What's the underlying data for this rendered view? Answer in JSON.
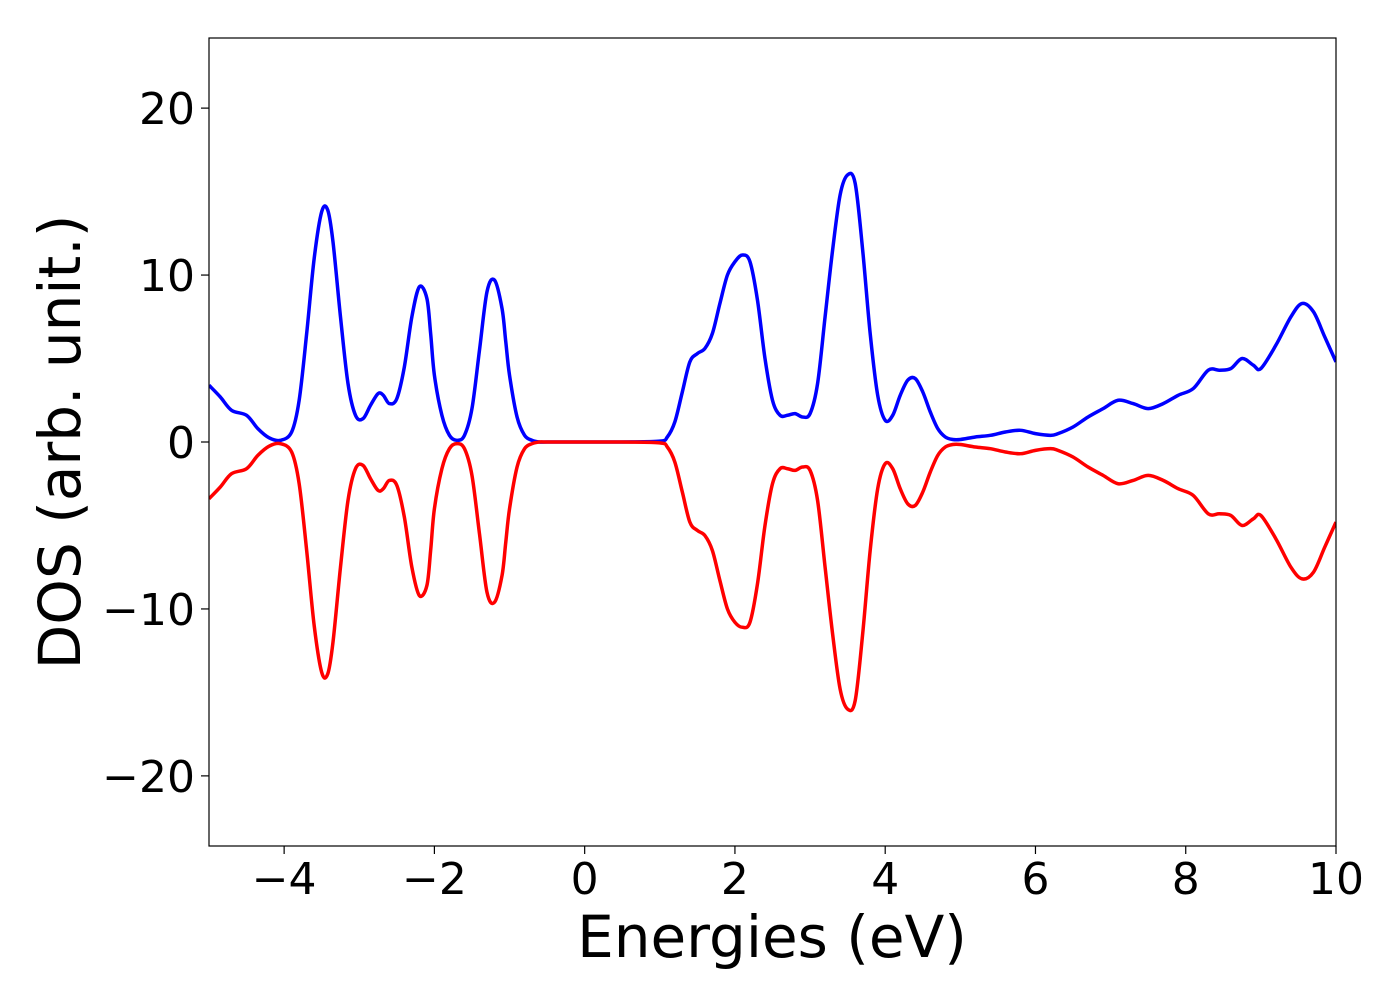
{
  "chart_data": {
    "type": "line",
    "title": "",
    "xlabel": "Energies (eV)",
    "ylabel": "DOS (arb. unit.)",
    "xlim": [
      -5,
      10
    ],
    "ylim": [
      -24.2,
      24.2
    ],
    "grid": false,
    "legend": "none",
    "x_ticks": [
      -4,
      -2,
      0,
      2,
      4,
      6,
      8,
      10
    ],
    "x_tick_labels": [
      "−4",
      "−2",
      "0",
      "2",
      "4",
      "6",
      "8",
      "10"
    ],
    "y_ticks": [
      20,
      10,
      0,
      -10,
      -20
    ],
    "y_tick_labels": [
      "20",
      "10",
      "0",
      "−10",
      "−20"
    ],
    "series": [
      {
        "color": "#0000ff",
        "x": [
          -5.0,
          -4.85,
          -4.7,
          -4.5,
          -4.35,
          -4.2,
          -4.05,
          -3.9,
          -3.8,
          -3.7,
          -3.6,
          -3.5,
          -3.42,
          -3.35,
          -3.25,
          -3.15,
          -3.05,
          -2.95,
          -2.85,
          -2.75,
          -2.68,
          -2.6,
          -2.5,
          -2.4,
          -2.3,
          -2.2,
          -2.1,
          -2.05,
          -2.0,
          -1.9,
          -1.8,
          -1.7,
          -1.6,
          -1.5,
          -1.4,
          -1.3,
          -1.2,
          -1.1,
          -1.05,
          -1.0,
          -0.9,
          -0.8,
          -0.7,
          -0.6,
          -0.5,
          0.0,
          0.5,
          1.0,
          1.1,
          1.2,
          1.3,
          1.4,
          1.5,
          1.6,
          1.7,
          1.8,
          1.9,
          2.0,
          2.1,
          2.2,
          2.3,
          2.4,
          2.5,
          2.6,
          2.7,
          2.8,
          2.9,
          3.0,
          3.1,
          3.2,
          3.3,
          3.4,
          3.5,
          3.6,
          3.7,
          3.8,
          3.9,
          4.0,
          4.1,
          4.2,
          4.3,
          4.4,
          4.5,
          4.6,
          4.7,
          4.8,
          4.9,
          5.0,
          5.2,
          5.4,
          5.6,
          5.8,
          6.0,
          6.2,
          6.3,
          6.5,
          6.7,
          6.9,
          7.1,
          7.3,
          7.5,
          7.7,
          7.9,
          8.1,
          8.3,
          8.45,
          8.6,
          8.75,
          8.9,
          9.0,
          9.2,
          9.4,
          9.55,
          9.7,
          9.85,
          10.0
        ],
        "y": [
          3.4,
          2.7,
          1.9,
          1.6,
          0.8,
          0.25,
          0.1,
          0.6,
          2.5,
          6.5,
          11.0,
          13.8,
          13.9,
          12.0,
          7.5,
          3.5,
          1.6,
          1.4,
          2.2,
          2.9,
          2.8,
          2.3,
          2.6,
          4.5,
          7.5,
          9.3,
          8.6,
          6.5,
          4.0,
          1.6,
          0.4,
          0.1,
          0.4,
          2.0,
          5.5,
          9.0,
          9.7,
          8.0,
          6.0,
          4.0,
          1.5,
          0.4,
          0.1,
          0.0,
          0.0,
          0.0,
          0.0,
          0.05,
          0.3,
          1.2,
          3.0,
          4.8,
          5.3,
          5.6,
          6.5,
          8.3,
          10.0,
          10.8,
          11.2,
          10.8,
          8.5,
          5.0,
          2.5,
          1.6,
          1.6,
          1.7,
          1.5,
          1.7,
          3.5,
          7.5,
          11.5,
          14.8,
          16.0,
          15.5,
          11.5,
          6.5,
          2.8,
          1.3,
          1.6,
          2.8,
          3.7,
          3.8,
          3.0,
          1.8,
          0.8,
          0.3,
          0.15,
          0.15,
          0.3,
          0.4,
          0.6,
          0.7,
          0.5,
          0.4,
          0.5,
          0.9,
          1.5,
          2.0,
          2.5,
          2.3,
          2.0,
          2.3,
          2.8,
          3.2,
          4.3,
          4.3,
          4.4,
          5.0,
          4.6,
          4.4,
          5.8,
          7.5,
          8.3,
          7.8,
          6.3,
          4.8
        ]
      },
      {
        "color": "#ff0000",
        "x": [
          -5.0,
          -4.85,
          -4.7,
          -4.5,
          -4.35,
          -4.2,
          -4.05,
          -3.9,
          -3.8,
          -3.7,
          -3.6,
          -3.5,
          -3.42,
          -3.35,
          -3.25,
          -3.15,
          -3.05,
          -2.95,
          -2.85,
          -2.75,
          -2.68,
          -2.6,
          -2.5,
          -2.4,
          -2.3,
          -2.2,
          -2.1,
          -2.05,
          -2.0,
          -1.9,
          -1.8,
          -1.7,
          -1.6,
          -1.5,
          -1.4,
          -1.3,
          -1.2,
          -1.1,
          -1.05,
          -1.0,
          -0.9,
          -0.8,
          -0.7,
          -0.6,
          -0.5,
          0.0,
          0.5,
          1.0,
          1.1,
          1.2,
          1.3,
          1.4,
          1.5,
          1.6,
          1.7,
          1.8,
          1.9,
          2.0,
          2.1,
          2.2,
          2.3,
          2.4,
          2.5,
          2.6,
          2.7,
          2.8,
          2.9,
          3.0,
          3.1,
          3.2,
          3.3,
          3.4,
          3.5,
          3.6,
          3.7,
          3.8,
          3.9,
          4.0,
          4.1,
          4.2,
          4.3,
          4.4,
          4.5,
          4.6,
          4.7,
          4.8,
          4.9,
          5.0,
          5.2,
          5.4,
          5.6,
          5.8,
          6.0,
          6.2,
          6.3,
          6.5,
          6.7,
          6.9,
          7.1,
          7.3,
          7.5,
          7.7,
          7.9,
          8.1,
          8.3,
          8.45,
          8.6,
          8.75,
          8.9,
          9.0,
          9.2,
          9.4,
          9.55,
          9.7,
          9.85,
          10.0
        ],
        "y": [
          -3.4,
          -2.7,
          -1.9,
          -1.6,
          -0.8,
          -0.25,
          -0.1,
          -0.6,
          -2.5,
          -6.5,
          -11.0,
          -13.8,
          -13.9,
          -12.0,
          -7.5,
          -3.5,
          -1.6,
          -1.4,
          -2.2,
          -2.9,
          -2.8,
          -2.3,
          -2.6,
          -4.5,
          -7.5,
          -9.2,
          -8.6,
          -6.5,
          -4.0,
          -1.6,
          -0.4,
          -0.1,
          -0.4,
          -2.0,
          -5.5,
          -9.0,
          -9.6,
          -8.0,
          -6.0,
          -4.0,
          -1.5,
          -0.4,
          -0.1,
          0.0,
          0.0,
          0.0,
          0.0,
          -0.05,
          -0.3,
          -1.2,
          -3.0,
          -4.8,
          -5.3,
          -5.6,
          -6.5,
          -8.3,
          -10.0,
          -10.8,
          -11.1,
          -10.8,
          -8.5,
          -5.0,
          -2.5,
          -1.6,
          -1.6,
          -1.7,
          -1.5,
          -1.7,
          -3.5,
          -7.5,
          -11.5,
          -14.8,
          -16.0,
          -15.5,
          -11.5,
          -6.5,
          -2.8,
          -1.3,
          -1.6,
          -2.8,
          -3.7,
          -3.8,
          -3.0,
          -1.8,
          -0.8,
          -0.3,
          -0.15,
          -0.15,
          -0.3,
          -0.4,
          -0.6,
          -0.7,
          -0.5,
          -0.4,
          -0.5,
          -0.9,
          -1.5,
          -2.0,
          -2.5,
          -2.3,
          -2.0,
          -2.3,
          -2.8,
          -3.2,
          -4.3,
          -4.3,
          -4.4,
          -5.0,
          -4.6,
          -4.4,
          -5.8,
          -7.5,
          -8.2,
          -7.8,
          -6.3,
          -4.8
        ]
      }
    ]
  }
}
